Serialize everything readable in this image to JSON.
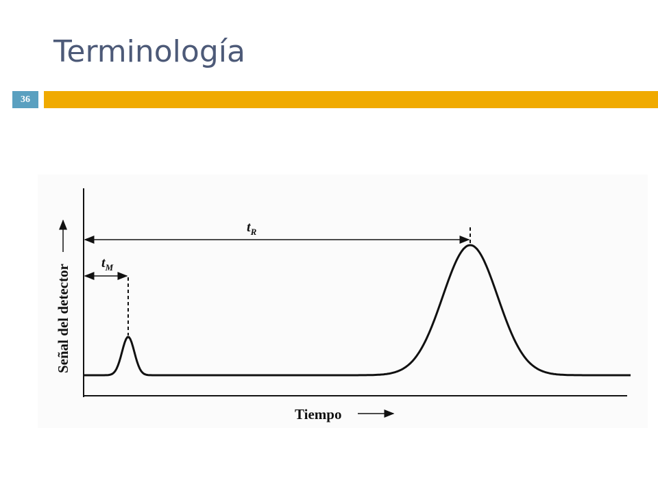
{
  "header": {
    "title": "Terminología",
    "slide_number": 36
  },
  "figure": {
    "y_axis_label": "Señal del detector",
    "x_axis_label": "Tiempo",
    "annotations": [
      {
        "symbol": "t",
        "subscript": "M"
      },
      {
        "symbol": "t",
        "subscript": "R"
      }
    ]
  }
}
